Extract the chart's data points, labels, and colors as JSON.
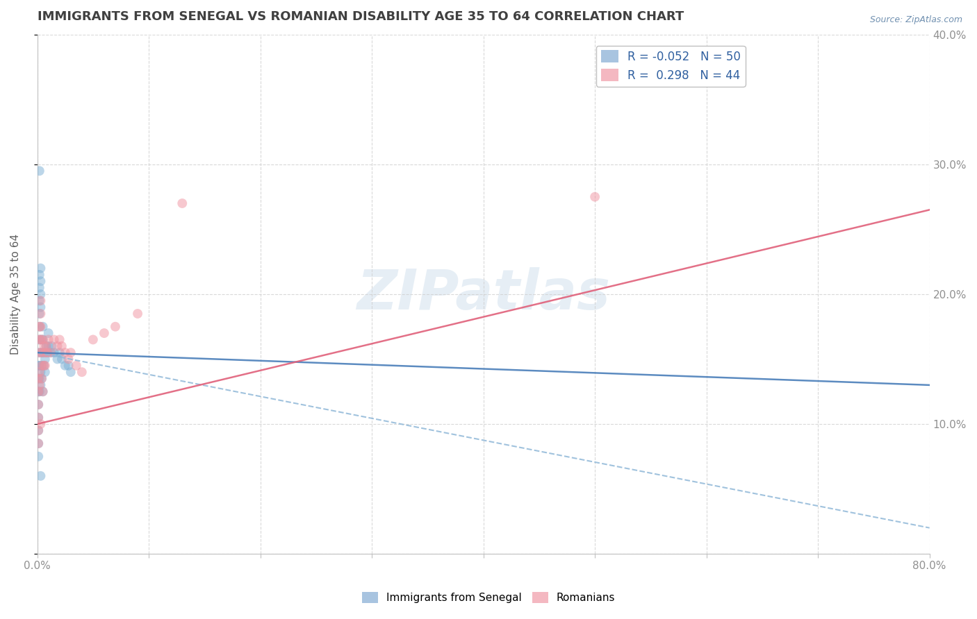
{
  "title": "IMMIGRANTS FROM SENEGAL VS ROMANIAN DISABILITY AGE 35 TO 64 CORRELATION CHART",
  "source_text": "Source: ZipAtlas.com",
  "ylabel": "Disability Age 35 to 64",
  "xlim": [
    0.0,
    0.8
  ],
  "ylim": [
    0.0,
    0.4
  ],
  "xticks": [
    0.0,
    0.1,
    0.2,
    0.3,
    0.4,
    0.5,
    0.6,
    0.7,
    0.8
  ],
  "xticklabels": [
    "0.0%",
    "",
    "",
    "",
    "",
    "",
    "",
    "",
    "80.0%"
  ],
  "yticks": [
    0.0,
    0.1,
    0.2,
    0.3,
    0.4
  ],
  "yticklabels_right": [
    "",
    "10.0%",
    "20.0%",
    "30.0%",
    "40.0%"
  ],
  "blue_scatter_x": [
    0.001,
    0.001,
    0.001,
    0.001,
    0.001,
    0.001,
    0.001,
    0.001,
    0.002,
    0.002,
    0.002,
    0.002,
    0.002,
    0.002,
    0.002,
    0.002,
    0.002,
    0.002,
    0.003,
    0.003,
    0.003,
    0.003,
    0.003,
    0.003,
    0.004,
    0.004,
    0.004,
    0.004,
    0.005,
    0.005,
    0.005,
    0.006,
    0.006,
    0.007,
    0.007,
    0.008,
    0.009,
    0.01,
    0.01,
    0.012,
    0.013,
    0.015,
    0.018,
    0.02,
    0.022,
    0.025,
    0.028,
    0.03,
    0.002,
    0.003
  ],
  "blue_scatter_y": [
    0.145,
    0.135,
    0.125,
    0.115,
    0.105,
    0.095,
    0.085,
    0.075,
    0.215,
    0.205,
    0.195,
    0.185,
    0.175,
    0.165,
    0.155,
    0.145,
    0.135,
    0.125,
    0.22,
    0.21,
    0.2,
    0.19,
    0.14,
    0.13,
    0.165,
    0.155,
    0.145,
    0.135,
    0.175,
    0.165,
    0.125,
    0.155,
    0.145,
    0.15,
    0.14,
    0.16,
    0.155,
    0.17,
    0.16,
    0.155,
    0.16,
    0.155,
    0.15,
    0.155,
    0.15,
    0.145,
    0.145,
    0.14,
    0.295,
    0.06
  ],
  "pink_scatter_x": [
    0.001,
    0.001,
    0.001,
    0.001,
    0.001,
    0.001,
    0.002,
    0.002,
    0.002,
    0.002,
    0.002,
    0.003,
    0.003,
    0.003,
    0.003,
    0.003,
    0.004,
    0.004,
    0.004,
    0.005,
    0.005,
    0.006,
    0.006,
    0.007,
    0.007,
    0.008,
    0.009,
    0.01,
    0.012,
    0.015,
    0.018,
    0.02,
    0.022,
    0.025,
    0.028,
    0.03,
    0.035,
    0.04,
    0.05,
    0.06,
    0.07,
    0.09,
    0.13,
    0.5
  ],
  "pink_scatter_y": [
    0.135,
    0.125,
    0.115,
    0.105,
    0.095,
    0.085,
    0.175,
    0.165,
    0.155,
    0.14,
    0.13,
    0.195,
    0.185,
    0.175,
    0.165,
    0.1,
    0.155,
    0.145,
    0.135,
    0.165,
    0.125,
    0.16,
    0.145,
    0.155,
    0.145,
    0.16,
    0.155,
    0.165,
    0.155,
    0.165,
    0.16,
    0.165,
    0.16,
    0.155,
    0.15,
    0.155,
    0.145,
    0.14,
    0.165,
    0.17,
    0.175,
    0.185,
    0.27,
    0.275
  ],
  "blue_line_x0": 0.0,
  "blue_line_x1": 0.8,
  "blue_line_y0": 0.155,
  "blue_line_y1": 0.13,
  "blue_dashed_line_y0": 0.155,
  "blue_dashed_line_y1": 0.02,
  "pink_line_y0": 0.1,
  "pink_line_y1": 0.265,
  "watermark_text": "ZIPatlas",
  "title_color": "#404040",
  "title_fontsize": 13,
  "axis_label_color": "#606060",
  "tick_color": "#909090",
  "grid_color": "#d0d0d0",
  "blue_color": "#7bafd4",
  "pink_color": "#f093a0",
  "blue_line_color": "#4a7fba",
  "blue_dashed_color": "#90b8d8",
  "pink_line_color": "#e0607a",
  "scatter_alpha": 0.5,
  "scatter_size": 100
}
